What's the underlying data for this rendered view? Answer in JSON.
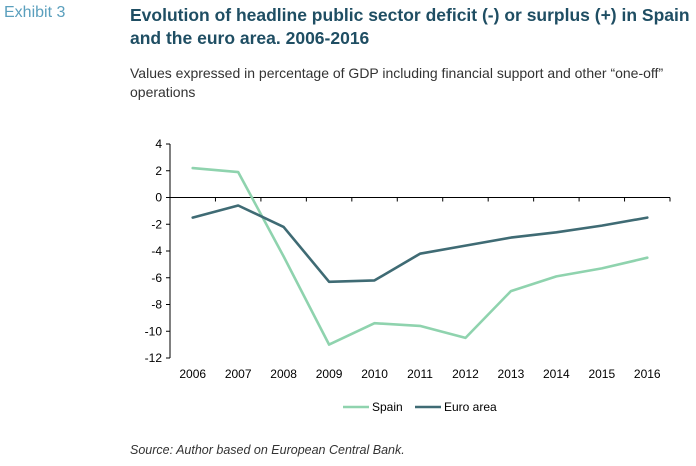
{
  "exhibit_label": "Exhibit 3",
  "title": "Evolution of headline public sector deficit (-) or surplus (+) in Spain and the euro area. 2006-2016",
  "subtitle": "Values expressed in percentage of GDP including financial support and other “one-off” operations",
  "source": "Source: Author based on European Central Bank.",
  "chart_data": {
    "type": "line",
    "x": [
      "2006",
      "2007",
      "2008",
      "2009",
      "2010",
      "2011",
      "2012",
      "2013",
      "2014",
      "2015",
      "2016"
    ],
    "series": [
      {
        "name": "Spain",
        "color": "#8fd3ae",
        "values": [
          2.2,
          1.9,
          -4.4,
          -11.0,
          -9.4,
          -9.6,
          -10.5,
          -7.0,
          -5.9,
          -5.3,
          -4.5
        ]
      },
      {
        "name": "Euro area",
        "color": "#3f6b74",
        "values": [
          -1.5,
          -0.6,
          -2.2,
          -6.3,
          -6.2,
          -4.2,
          -3.6,
          -3.0,
          -2.6,
          -2.1,
          -1.5
        ]
      }
    ],
    "ylim": [
      -12,
      4
    ],
    "yticks": [
      "4",
      "2",
      "0",
      "-2",
      "-4",
      "-6",
      "-8",
      "-10",
      "-12"
    ],
    "legend_position": "bottom-center",
    "grid": false
  }
}
